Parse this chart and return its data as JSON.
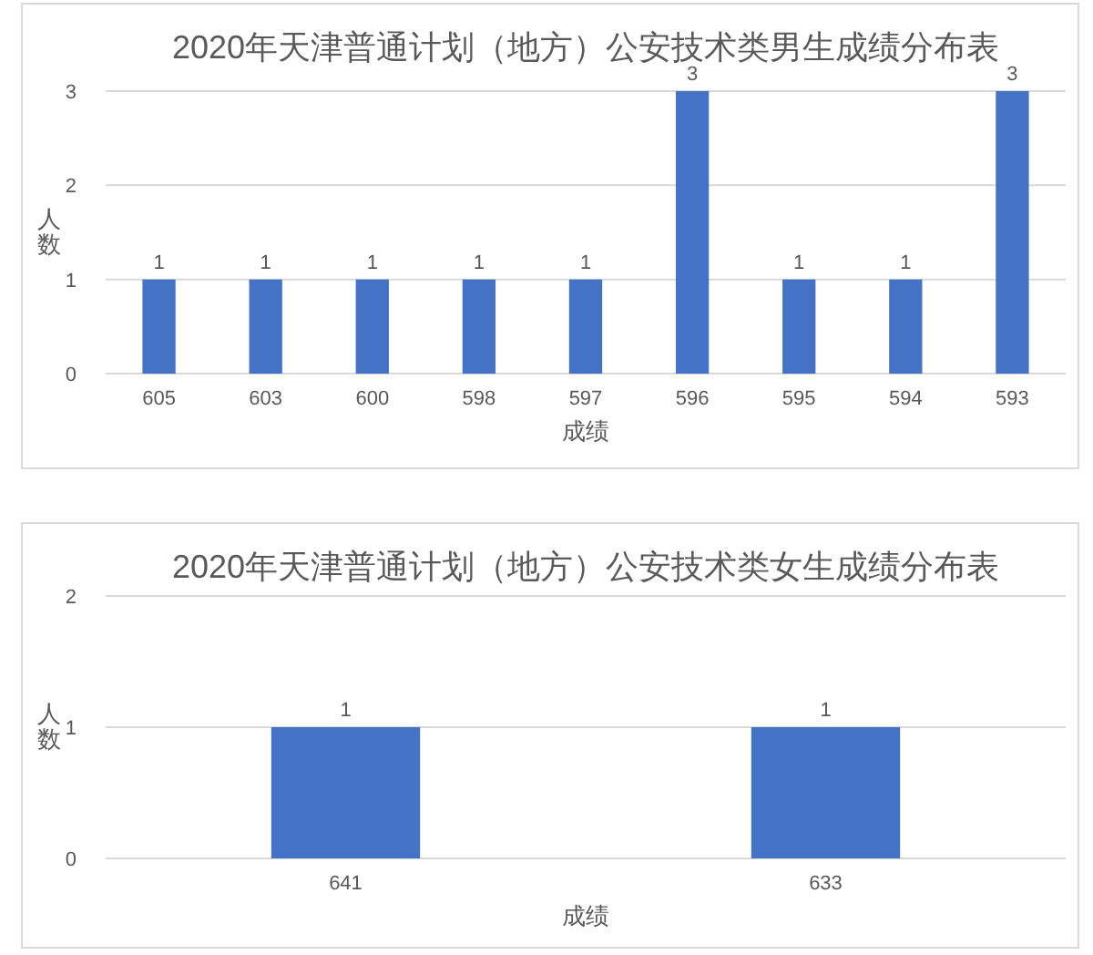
{
  "chart_data": [
    {
      "type": "bar",
      "title": "2020年天津普通计划（地方）公安技术类男生成绩分布表",
      "xlabel": "成绩",
      "ylabel": "人数",
      "categories": [
        "605",
        "603",
        "600",
        "598",
        "597",
        "596",
        "595",
        "594",
        "593"
      ],
      "values": [
        1,
        1,
        1,
        1,
        1,
        3,
        1,
        1,
        3
      ],
      "color": "#4472c4",
      "ylim": [
        0,
        3
      ],
      "yticks": [
        0,
        1,
        2,
        3
      ],
      "grid": "y",
      "data_labels": true
    },
    {
      "type": "bar",
      "title": "2020年天津普通计划（地方）公安技术类女生成绩分布表",
      "xlabel": "成绩",
      "ylabel": "人数",
      "categories": [
        "641",
        "633"
      ],
      "values": [
        1,
        1
      ],
      "color": "#4472c4",
      "ylim": [
        0,
        2
      ],
      "yticks": [
        0,
        1,
        2
      ],
      "grid": "y",
      "data_labels": true
    }
  ]
}
